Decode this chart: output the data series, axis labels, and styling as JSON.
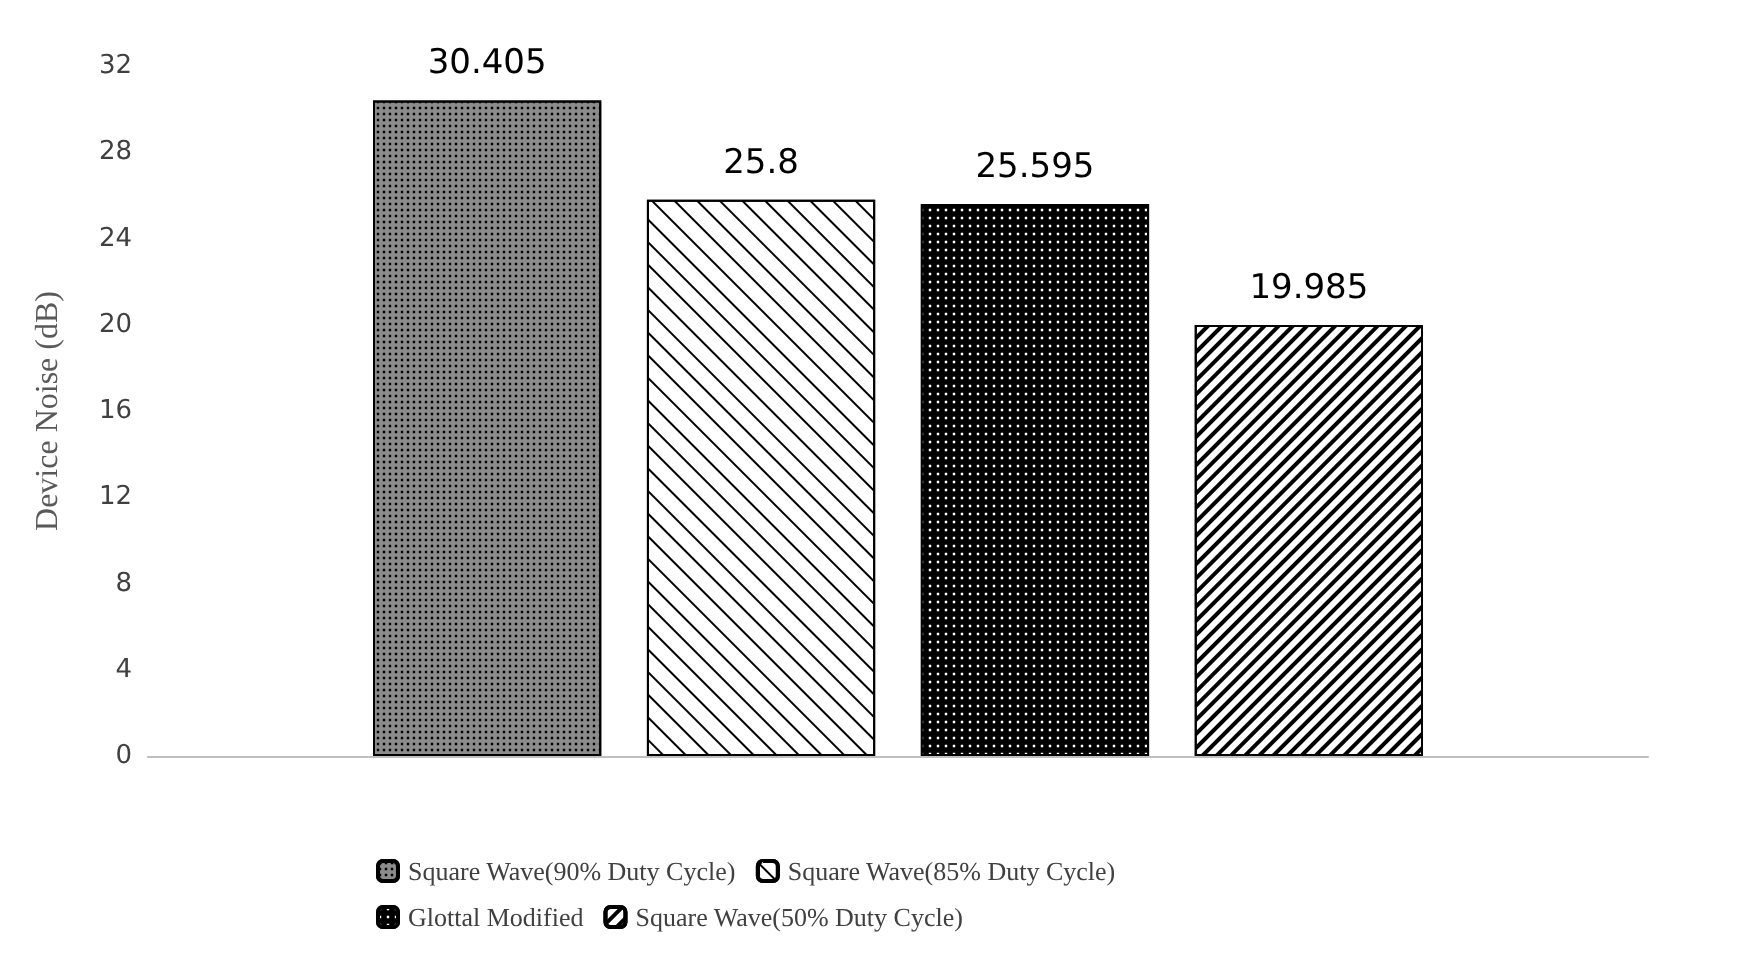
{
  "chart_data": {
    "type": "bar",
    "ylabel": "Device Noise (dB)",
    "categories": [
      null
    ],
    "series": [
      {
        "name": "Square Wave(90% Duty Cycle)",
        "color": "#8c8c8c",
        "values": [
          30.405
        ]
      },
      {
        "name": "Square Wave(85% Duty Cycle)",
        "color": "#ffffff",
        "values": [
          25.8
        ]
      },
      {
        "name": "Glottal Modified",
        "color": "#000000",
        "values": [
          25.595
        ]
      },
      {
        "name": "Square Wave(50% Duty Cycle)",
        "color": "#ffffff",
        "values": [
          19.985
        ]
      }
    ],
    "ylim": [
      0,
      32
    ],
    "yticks": [
      0,
      4,
      8,
      12,
      16,
      20,
      24,
      28,
      32
    ],
    "grid": false,
    "legend": "bottom",
    "data_labels": true
  }
}
